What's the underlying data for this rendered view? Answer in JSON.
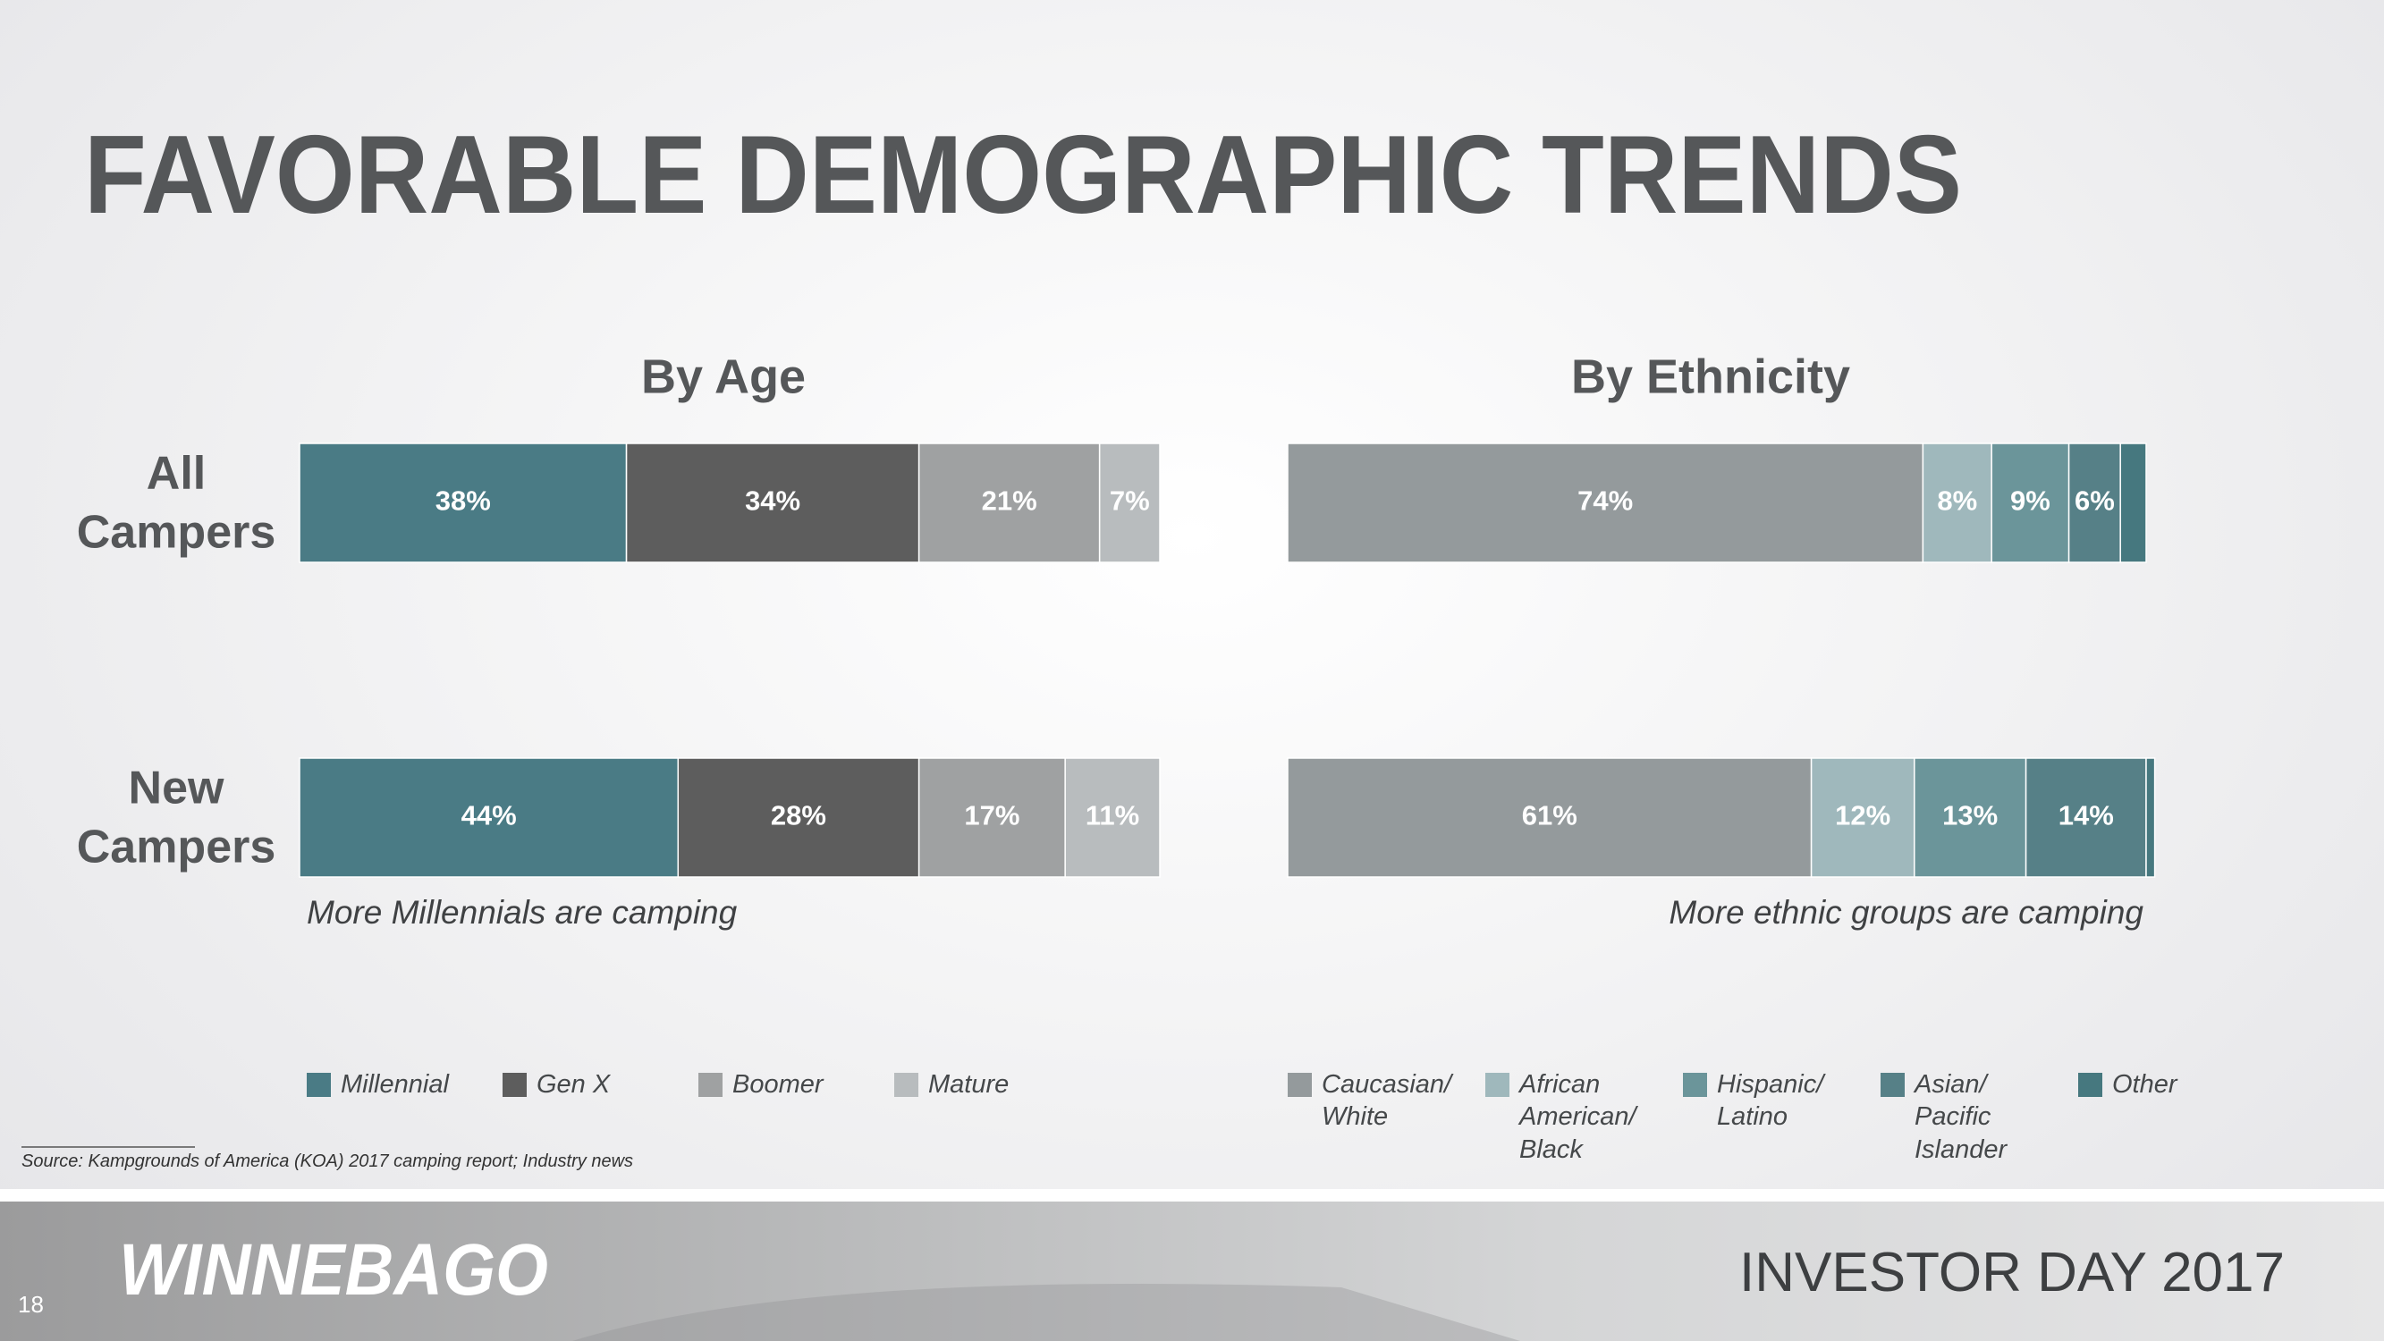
{
  "slide": {
    "title": "FAVORABLE DEMOGRAPHIC TRENDS",
    "source": "Source: Kampgrounds of America (KOA) 2017 camping report; Industry news",
    "logo": "WINNEBAGO",
    "footer": "INVESTOR DAY 2017",
    "page_number": 18
  },
  "chart_data": [
    {
      "type": "bar",
      "orientation": "horizontal",
      "stacked": true,
      "title": "By Age",
      "categories": [
        "All Campers",
        "New Campers"
      ],
      "xlim": [
        0,
        100
      ],
      "annotation": "More Millennials are camping",
      "series": [
        {
          "name": "Millennial",
          "color": "#4a7b85",
          "values": [
            38,
            44
          ],
          "value_labels": [
            "38%",
            "44%"
          ]
        },
        {
          "name": "Gen X",
          "color": "#5d5d5d",
          "values": [
            34,
            28
          ],
          "value_labels": [
            "34%",
            "28%"
          ]
        },
        {
          "name": "Boomer",
          "color": "#9fa1a2",
          "values": [
            21,
            17
          ],
          "value_labels": [
            "21%",
            "17%"
          ]
        },
        {
          "name": "Mature",
          "color": "#b8bcbe",
          "values": [
            7,
            11
          ],
          "value_labels": [
            "7%",
            "11%"
          ]
        }
      ]
    },
    {
      "type": "bar",
      "orientation": "horizontal",
      "stacked": true,
      "title": "By Ethnicity",
      "categories": [
        null,
        null
      ],
      "xlim": [
        0,
        100
      ],
      "annotation": "More ethnic groups are camping",
      "series": [
        {
          "name": "Caucasian/ White",
          "color": "#949a9c",
          "values": [
            74,
            61
          ],
          "value_labels": [
            "74%",
            "61%"
          ]
        },
        {
          "name": "African American/ Black",
          "color": "#9fb8bc",
          "values": [
            8,
            12
          ],
          "value_labels": [
            "8%",
            "12%"
          ]
        },
        {
          "name": "Hispanic/ Latino",
          "color": "#6b959a",
          "values": [
            9,
            13
          ],
          "value_labels": [
            "9%",
            "13%"
          ]
        },
        {
          "name": "Asian/ Pacific Islander",
          "color": "#568087",
          "values": [
            6,
            14
          ],
          "value_labels": [
            "6%",
            "14%"
          ]
        },
        {
          "name": "Other",
          "color": "#46787f",
          "values": [
            3,
            1
          ],
          "value_labels": [
            null,
            null
          ]
        }
      ]
    }
  ]
}
